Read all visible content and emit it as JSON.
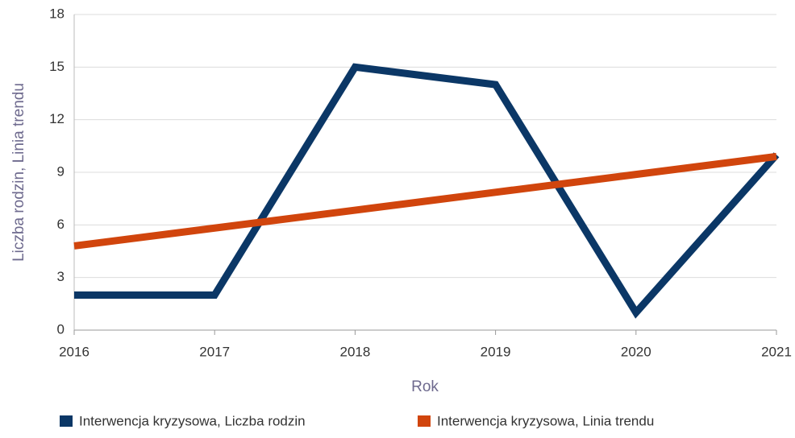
{
  "chart_data": {
    "type": "line",
    "x_label": "Rok",
    "y_label": "Liczba rodzin, Linia trendu",
    "x": [
      2016,
      2017,
      2018,
      2019,
      2020,
      2021
    ],
    "series": [
      {
        "name": "Interwencja kryzysowa, Liczba rodzin",
        "color": "#0b3766",
        "values": [
          2,
          2,
          15,
          14,
          1,
          10
        ]
      },
      {
        "name": "Interwencja kryzysowa, Linia trendu",
        "color": "#d1450d",
        "values": [
          4.8,
          5.82,
          6.84,
          7.86,
          8.88,
          9.9
        ]
      }
    ],
    "xlim": [
      2016,
      2021
    ],
    "xticks": [
      2016,
      2017,
      2018,
      2019,
      2020,
      2021
    ],
    "ylim": [
      0,
      18
    ],
    "yticks": [
      0,
      3,
      6,
      9,
      12,
      15,
      18
    ],
    "grid": true
  }
}
